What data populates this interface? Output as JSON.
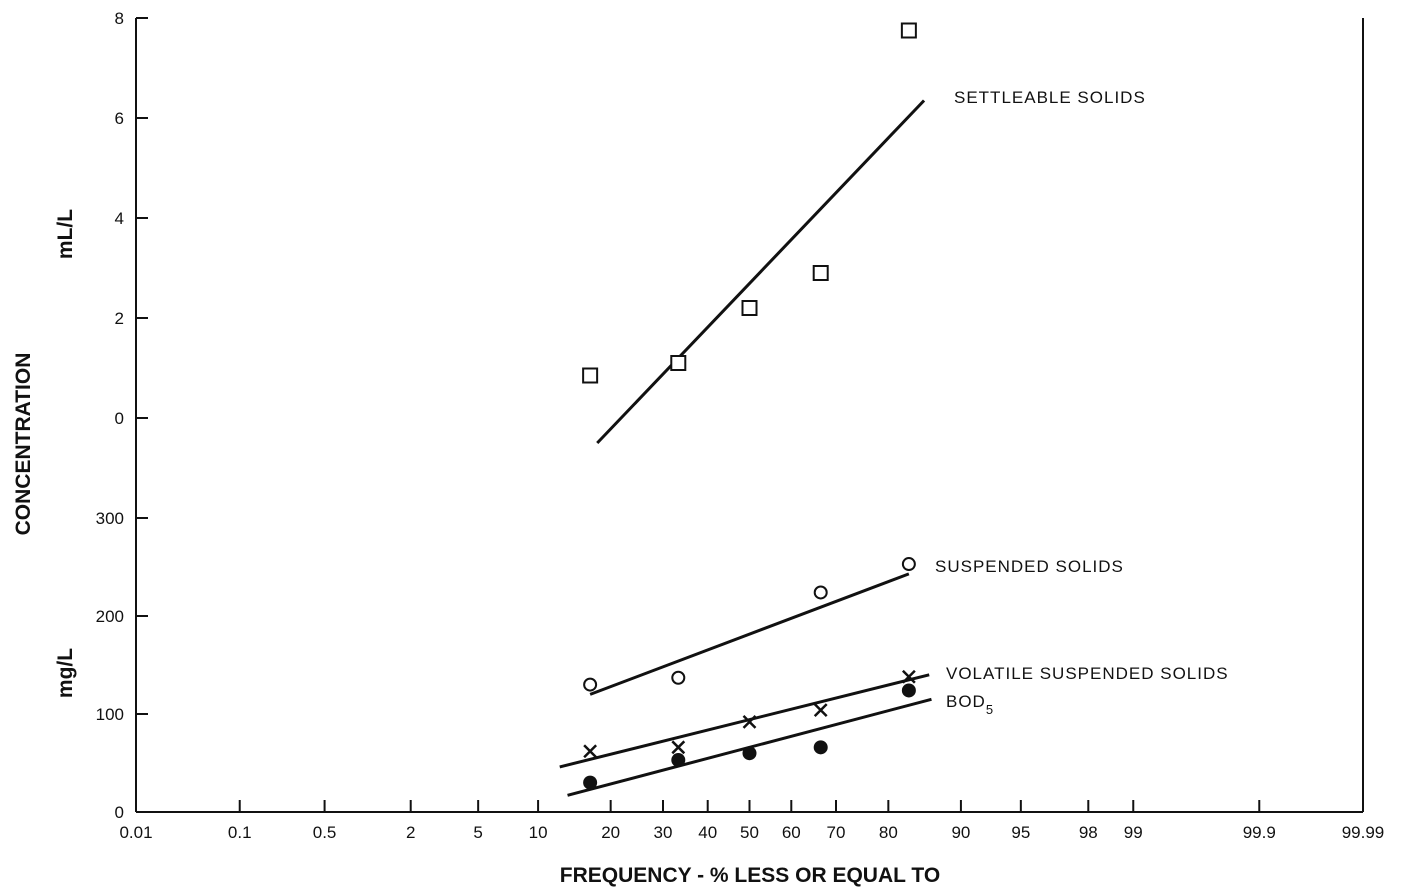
{
  "chart_data": {
    "type": "scatter",
    "xlabel": "FREQUENCY - % LESS OR EQUAL TO",
    "ylabel": "CONCENTRATION",
    "x_scale": "probability",
    "x_ticks": [
      "0.01",
      "0.1",
      "0.5",
      "2",
      "5",
      "10",
      "20",
      "30",
      "40",
      "50",
      "60",
      "70",
      "80",
      "90",
      "95",
      "98",
      "99",
      "99.9",
      "99.99"
    ],
    "grid": false,
    "panels": [
      {
        "name": "upper",
        "ylabel": "mL/L",
        "ylim": [
          0,
          8
        ],
        "y_ticks": [
          "0",
          "2",
          "4",
          "6",
          "8"
        ],
        "series": [
          {
            "name": "SETTLEABLE SOLIDS",
            "marker": "square",
            "x": [
              16.7,
              33.3,
              50,
              66.7,
              83.3
            ],
            "y": [
              0.85,
              1.1,
              2.2,
              2.9,
              7.75
            ],
            "fit_line": {
              "x": [
                17.8,
                85.5
              ],
              "y": [
                -0.5,
                6.35
              ]
            }
          }
        ]
      },
      {
        "name": "lower",
        "ylabel": "mg/L",
        "ylim": [
          0,
          300
        ],
        "y_ticks": [
          "0",
          "100",
          "200",
          "300"
        ],
        "series": [
          {
            "name": "SUSPENDED SOLIDS",
            "marker": "circle",
            "x": [
              16.7,
              33.3,
              66.7,
              83.3
            ],
            "y": [
              130,
              137,
              224,
              253
            ],
            "fit_line": {
              "x": [
                16.7,
                83.3
              ],
              "y": [
                120,
                243
              ]
            }
          },
          {
            "name": "VOLATILE SUSPENDED SOLIDS",
            "marker": "cross",
            "x": [
              16.7,
              33.3,
              50,
              66.7,
              83.3
            ],
            "y": [
              62,
              66,
              92,
              104,
              138
            ],
            "fit_line": {
              "x": [
                12.5,
                86.2
              ],
              "y": [
                46,
                140
              ]
            }
          },
          {
            "name": "BOD",
            "name_subscript": "5",
            "marker": "filled-circle",
            "x": [
              16.7,
              33.3,
              50,
              66.7,
              83.3
            ],
            "y": [
              30,
              53,
              60,
              66,
              124
            ],
            "fit_line": {
              "x": [
                13.5,
                86.5
              ],
              "y": [
                17,
                115
              ]
            }
          }
        ]
      }
    ]
  }
}
